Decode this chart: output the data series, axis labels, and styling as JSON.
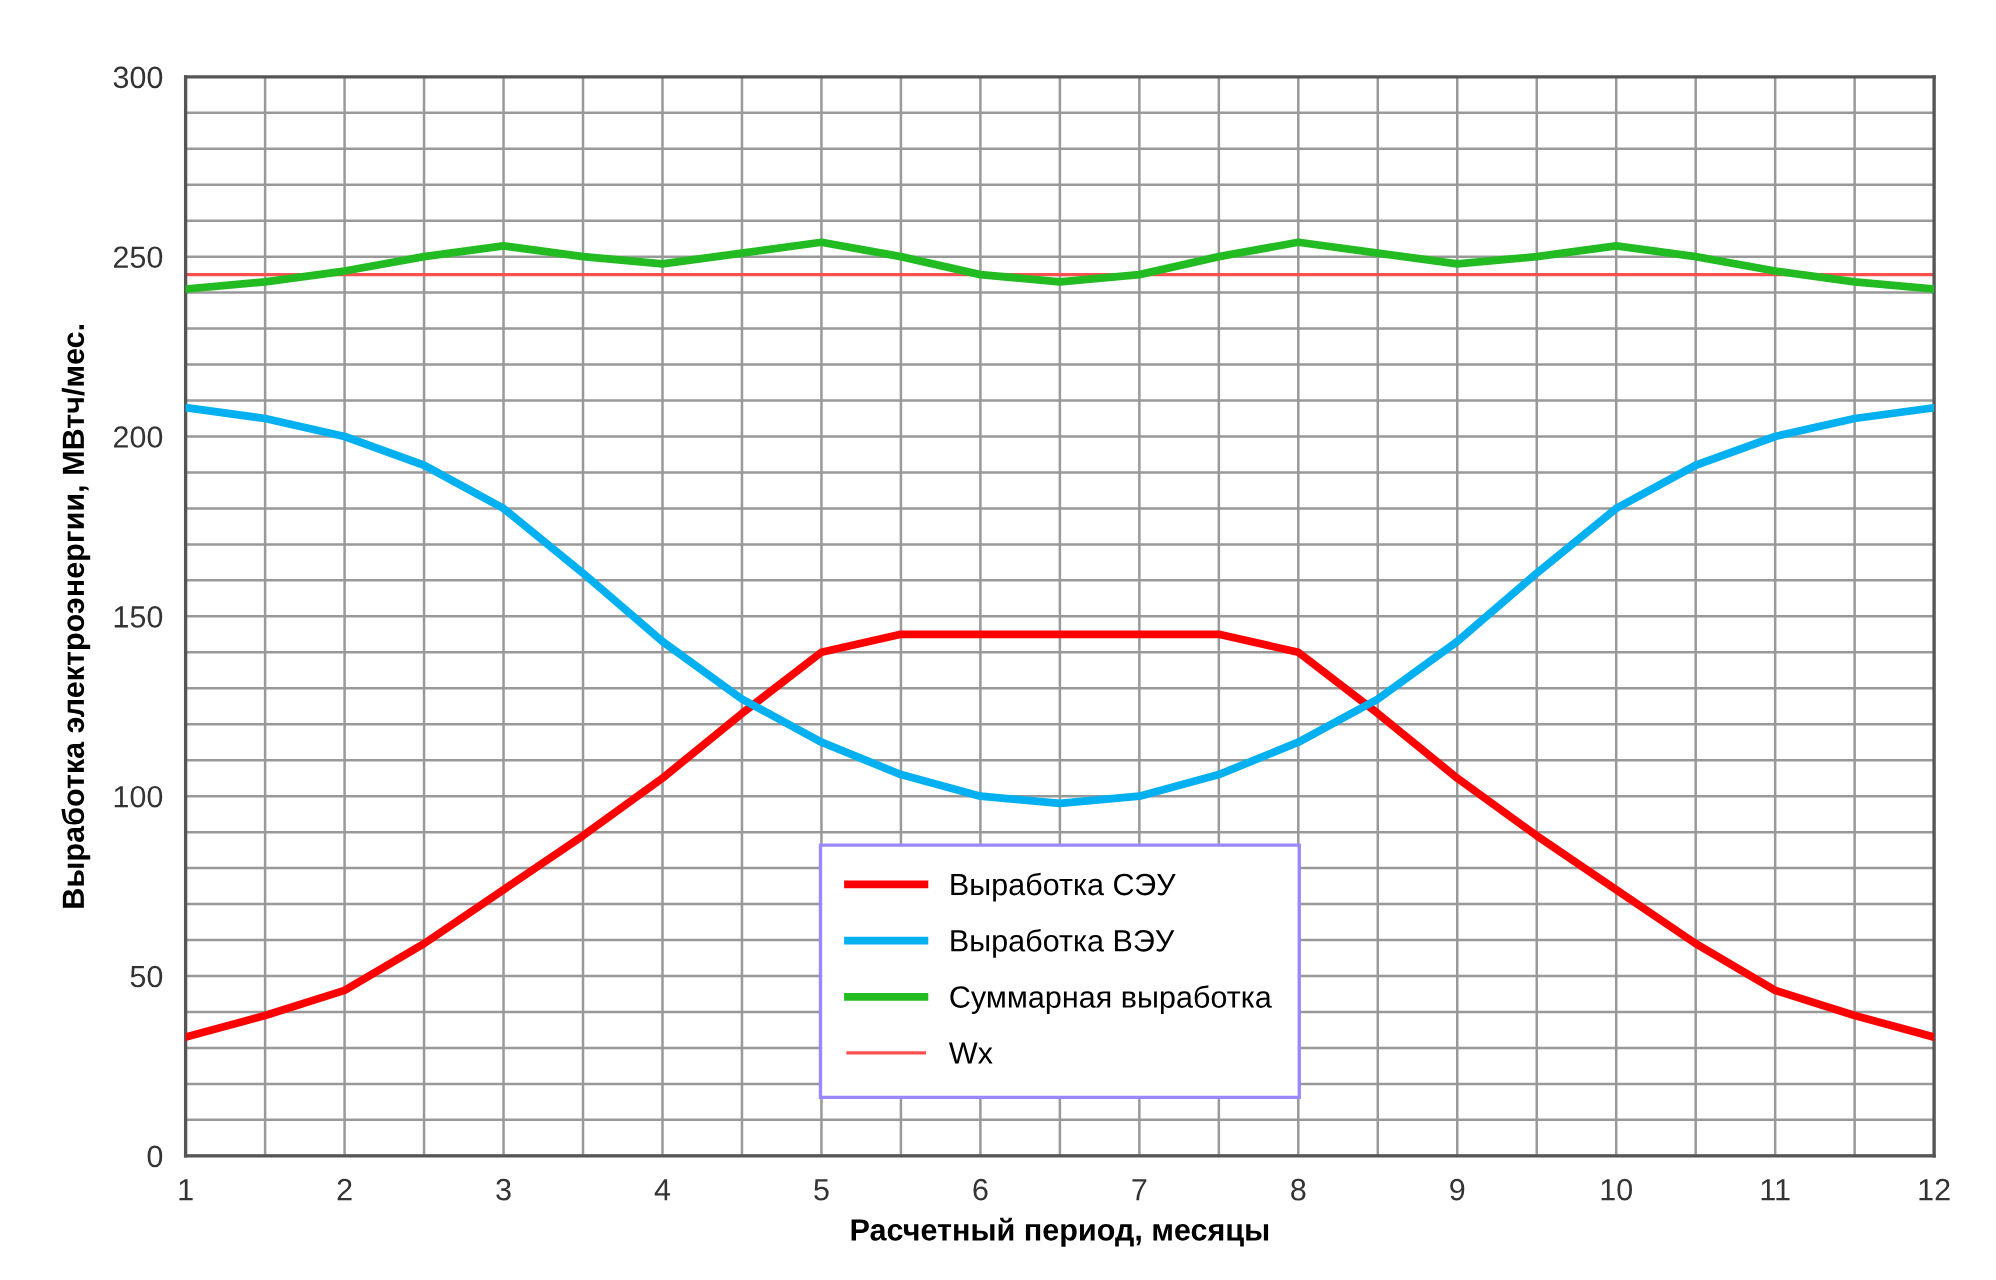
{
  "chart_data": {
    "type": "line",
    "xlabel": "Расчетный период, месяцы",
    "ylabel": "Выработка электроэнергии, МВтч/мес.",
    "x": [
      1,
      1.5,
      2,
      2.5,
      3,
      3.5,
      4,
      4.5,
      5,
      5.5,
      6,
      6.5,
      7,
      7.5,
      8,
      8.5,
      9,
      9.5,
      10,
      10.5,
      11,
      11.5,
      12
    ],
    "series": [
      {
        "name": "Выработка СЭУ",
        "color": "#ff0000",
        "values": [
          33,
          39,
          46,
          59,
          74,
          89,
          105,
          123,
          140,
          145,
          145,
          145,
          145,
          145,
          140,
          123,
          105,
          89,
          74,
          59,
          46,
          39,
          33
        ]
      },
      {
        "name": "Выработка ВЭУ",
        "color": "#00b0f0",
        "values": [
          208,
          205,
          200,
          192,
          180,
          162,
          143,
          127,
          115,
          106,
          100,
          98,
          100,
          106,
          115,
          127,
          143,
          162,
          180,
          192,
          200,
          205,
          208
        ]
      },
      {
        "name": "Суммарная выработка",
        "color": "#22bb22",
        "values": [
          241,
          243,
          246,
          250,
          253,
          250,
          248,
          251,
          254,
          250,
          245,
          243,
          245,
          250,
          254,
          251,
          248,
          250,
          253,
          250,
          246,
          243,
          241
        ]
      }
    ],
    "ref_lines": [
      {
        "axis": "y",
        "value": 245,
        "label": "Wx",
        "color": "#ff5050"
      }
    ],
    "xlim": [
      1,
      12
    ],
    "ylim": [
      0,
      300
    ],
    "xticks": [
      1,
      {
        "value": 1.5,
        "label": null
      },
      2,
      {
        "value": 2.5,
        "label": null
      },
      3,
      {
        "value": 3.5,
        "label": null
      },
      4,
      {
        "value": 4.5,
        "label": null
      },
      5,
      {
        "value": 5.5,
        "label": null
      },
      6,
      {
        "value": 6.5,
        "label": null
      },
      7,
      {
        "value": 7.5,
        "label": null
      },
      8,
      {
        "value": 8.5,
        "label": null
      },
      9,
      {
        "value": 9.5,
        "label": null
      },
      10,
      {
        "value": 10.5,
        "label": null
      },
      11,
      {
        "value": 11.5,
        "label": null
      },
      12
    ],
    "yticks": [
      0,
      {
        "value": 10,
        "label": null
      },
      {
        "value": 20,
        "label": null
      },
      {
        "value": 30,
        "label": null
      },
      {
        "value": 40,
        "label": null
      },
      50,
      {
        "value": 60,
        "label": null
      },
      {
        "value": 70,
        "label": null
      },
      {
        "value": 80,
        "label": null
      },
      {
        "value": 90,
        "label": null
      },
      100,
      {
        "value": 110,
        "label": null
      },
      {
        "value": 120,
        "label": null
      },
      {
        "value": 130,
        "label": null
      },
      {
        "value": 140,
        "label": null
      },
      150,
      {
        "value": 160,
        "label": null
      },
      {
        "value": 170,
        "label": null
      },
      {
        "value": 180,
        "label": null
      },
      {
        "value": 190,
        "label": null
      },
      200,
      {
        "value": 210,
        "label": null
      },
      {
        "value": 220,
        "label": null
      },
      {
        "value": 230,
        "label": null
      },
      {
        "value": 240,
        "label": null
      },
      250,
      {
        "value": 260,
        "label": null
      },
      {
        "value": 270,
        "label": null
      },
      {
        "value": 280,
        "label": null
      },
      {
        "value": 290,
        "label": null
      },
      300
    ],
    "grid": true,
    "legend": "bottom",
    "marker": "none",
    "line_style": "solid"
  }
}
